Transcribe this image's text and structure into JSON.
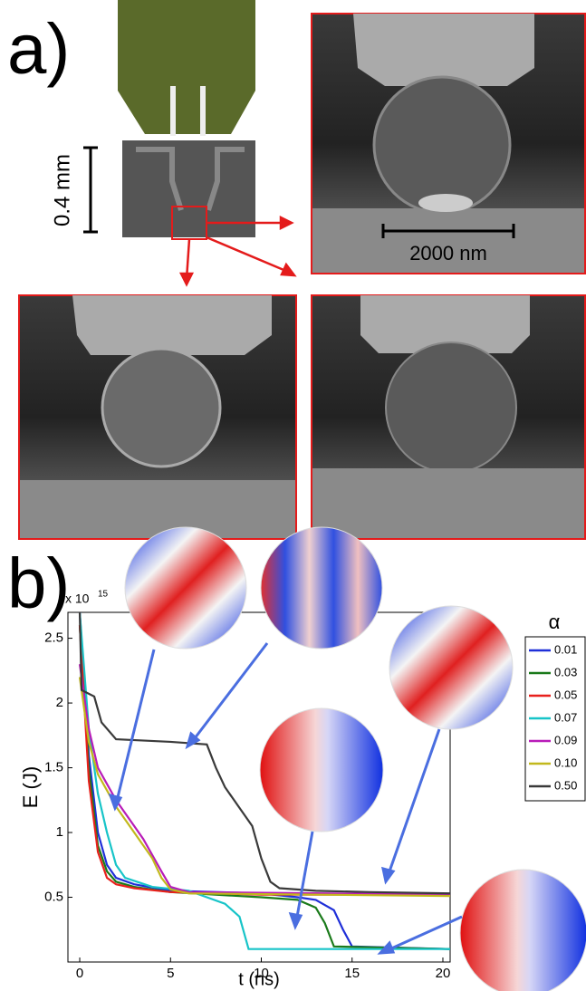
{
  "panel_a": {
    "label": "a)",
    "scale_bar_chip": "0.4 mm",
    "scale_bar_sem": "2000 nm"
  },
  "panel_b": {
    "label": "b)"
  },
  "chart_data": {
    "type": "line",
    "y_multiplier": "x 10",
    "y_multiplier_exponent": "15",
    "x_label": "t (ns)",
    "y_label": "E (J)",
    "legend_title": "α",
    "legend_position": "right",
    "xlim": [
      -0.65,
      20.4
    ],
    "ylim": [
      0,
      2.7
    ],
    "xticks": [
      0,
      5,
      10,
      15,
      20
    ],
    "yticks": [
      0.5,
      1,
      1.5,
      2,
      2.5
    ],
    "series": [
      {
        "name": "0.01",
        "color": "#1f2fd8",
        "x": [
          0,
          0.5,
          1,
          1.5,
          2,
          3,
          5,
          10,
          12,
          13,
          14,
          14.5,
          15,
          20.4
        ],
        "values": [
          2.7,
          1.6,
          1.0,
          0.75,
          0.65,
          0.6,
          0.55,
          0.53,
          0.5,
          0.48,
          0.4,
          0.25,
          0.12,
          0.1
        ]
      },
      {
        "name": "0.03",
        "color": "#1a7a1a",
        "x": [
          0,
          0.5,
          1,
          1.5,
          2,
          3,
          5,
          10,
          12,
          13,
          13.5,
          14,
          20.4
        ],
        "values": [
          2.6,
          1.5,
          0.9,
          0.7,
          0.62,
          0.58,
          0.54,
          0.5,
          0.48,
          0.42,
          0.3,
          0.12,
          0.1
        ]
      },
      {
        "name": "0.05",
        "color": "#e8201c",
        "x": [
          0,
          0.5,
          1,
          1.5,
          2,
          3,
          5,
          10,
          20.4
        ],
        "values": [
          2.6,
          1.4,
          0.85,
          0.65,
          0.6,
          0.57,
          0.54,
          0.52,
          0.52
        ]
      },
      {
        "name": "0.07",
        "color": "#17c4c8",
        "x": [
          0,
          0.5,
          1,
          1.5,
          2,
          2.5,
          4,
          6,
          7,
          8,
          8.8,
          9.3,
          20.4
        ],
        "values": [
          2.7,
          1.8,
          1.3,
          1.0,
          0.75,
          0.65,
          0.58,
          0.55,
          0.5,
          0.45,
          0.35,
          0.1,
          0.1
        ]
      },
      {
        "name": "0.09",
        "color": "#b81cb8",
        "x": [
          0,
          0.5,
          1,
          2,
          3,
          3.5,
          4.5,
          5,
          6,
          20.4
        ],
        "values": [
          2.3,
          1.8,
          1.5,
          1.25,
          1.05,
          0.95,
          0.7,
          0.58,
          0.54,
          0.52
        ]
      },
      {
        "name": "0.10",
        "color": "#c2b81c",
        "x": [
          0,
          0.5,
          1,
          2,
          3,
          4,
          4.5,
          5,
          6,
          20.4
        ],
        "values": [
          2.2,
          1.7,
          1.45,
          1.2,
          1.0,
          0.8,
          0.65,
          0.56,
          0.53,
          0.51
        ]
      },
      {
        "name": "0.50",
        "color": "#3a3a3a",
        "x": [
          0,
          0.1,
          0.8,
          1.2,
          2,
          5,
          7,
          7.5,
          8,
          8.5,
          9.5,
          10,
          10.5,
          11,
          13,
          16,
          20.4
        ],
        "values": [
          2.7,
          2.1,
          2.05,
          1.85,
          1.72,
          1.7,
          1.68,
          1.5,
          1.35,
          1.25,
          1.05,
          0.8,
          0.62,
          0.57,
          0.55,
          0.54,
          0.53
        ]
      }
    ]
  }
}
